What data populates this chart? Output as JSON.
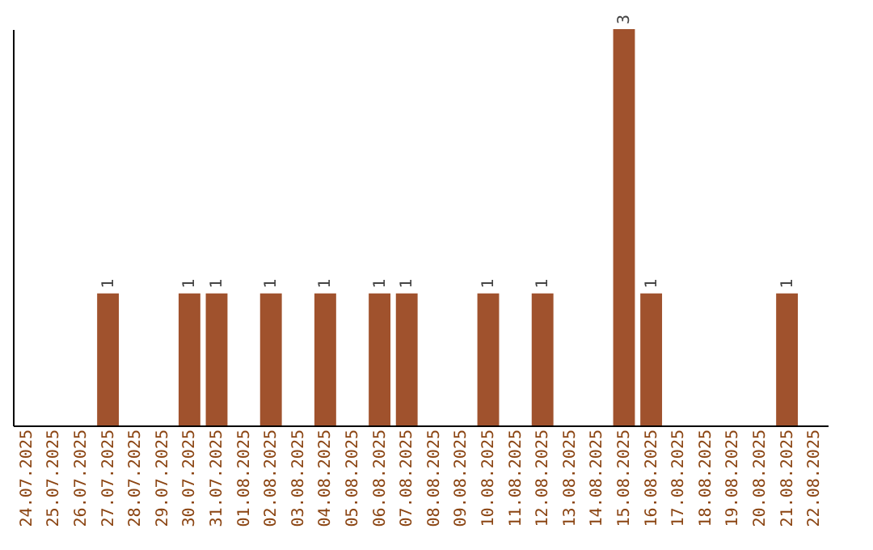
{
  "chart_data": {
    "type": "bar",
    "categories": [
      "24.07.2025",
      "25.07.2025",
      "26.07.2025",
      "27.07.2025",
      "28.07.2025",
      "29.07.2025",
      "30.07.2025",
      "31.07.2025",
      "01.08.2025",
      "02.08.2025",
      "03.08.2025",
      "04.08.2025",
      "05.08.2025",
      "06.08.2025",
      "07.08.2025",
      "08.08.2025",
      "09.08.2025",
      "10.08.2025",
      "11.08.2025",
      "12.08.2025",
      "13.08.2025",
      "14.08.2025",
      "15.08.2025",
      "16.08.2025",
      "17.08.2025",
      "18.08.2025",
      "19.08.2025",
      "20.08.2025",
      "21.08.2025",
      "22.08.2025"
    ],
    "values": [
      0,
      0,
      0,
      1,
      0,
      0,
      1,
      1,
      0,
      1,
      0,
      1,
      0,
      1,
      1,
      0,
      0,
      1,
      0,
      1,
      0,
      0,
      3,
      1,
      0,
      0,
      0,
      0,
      1,
      0
    ],
    "value_labels": [
      null,
      null,
      null,
      "1",
      null,
      null,
      "1",
      "1",
      null,
      "1",
      null,
      "1",
      null,
      "1",
      "1",
      null,
      null,
      "1",
      null,
      "1",
      null,
      null,
      "3",
      "1",
      null,
      null,
      null,
      null,
      "1",
      null
    ],
    "color": "#a0522d"
  }
}
